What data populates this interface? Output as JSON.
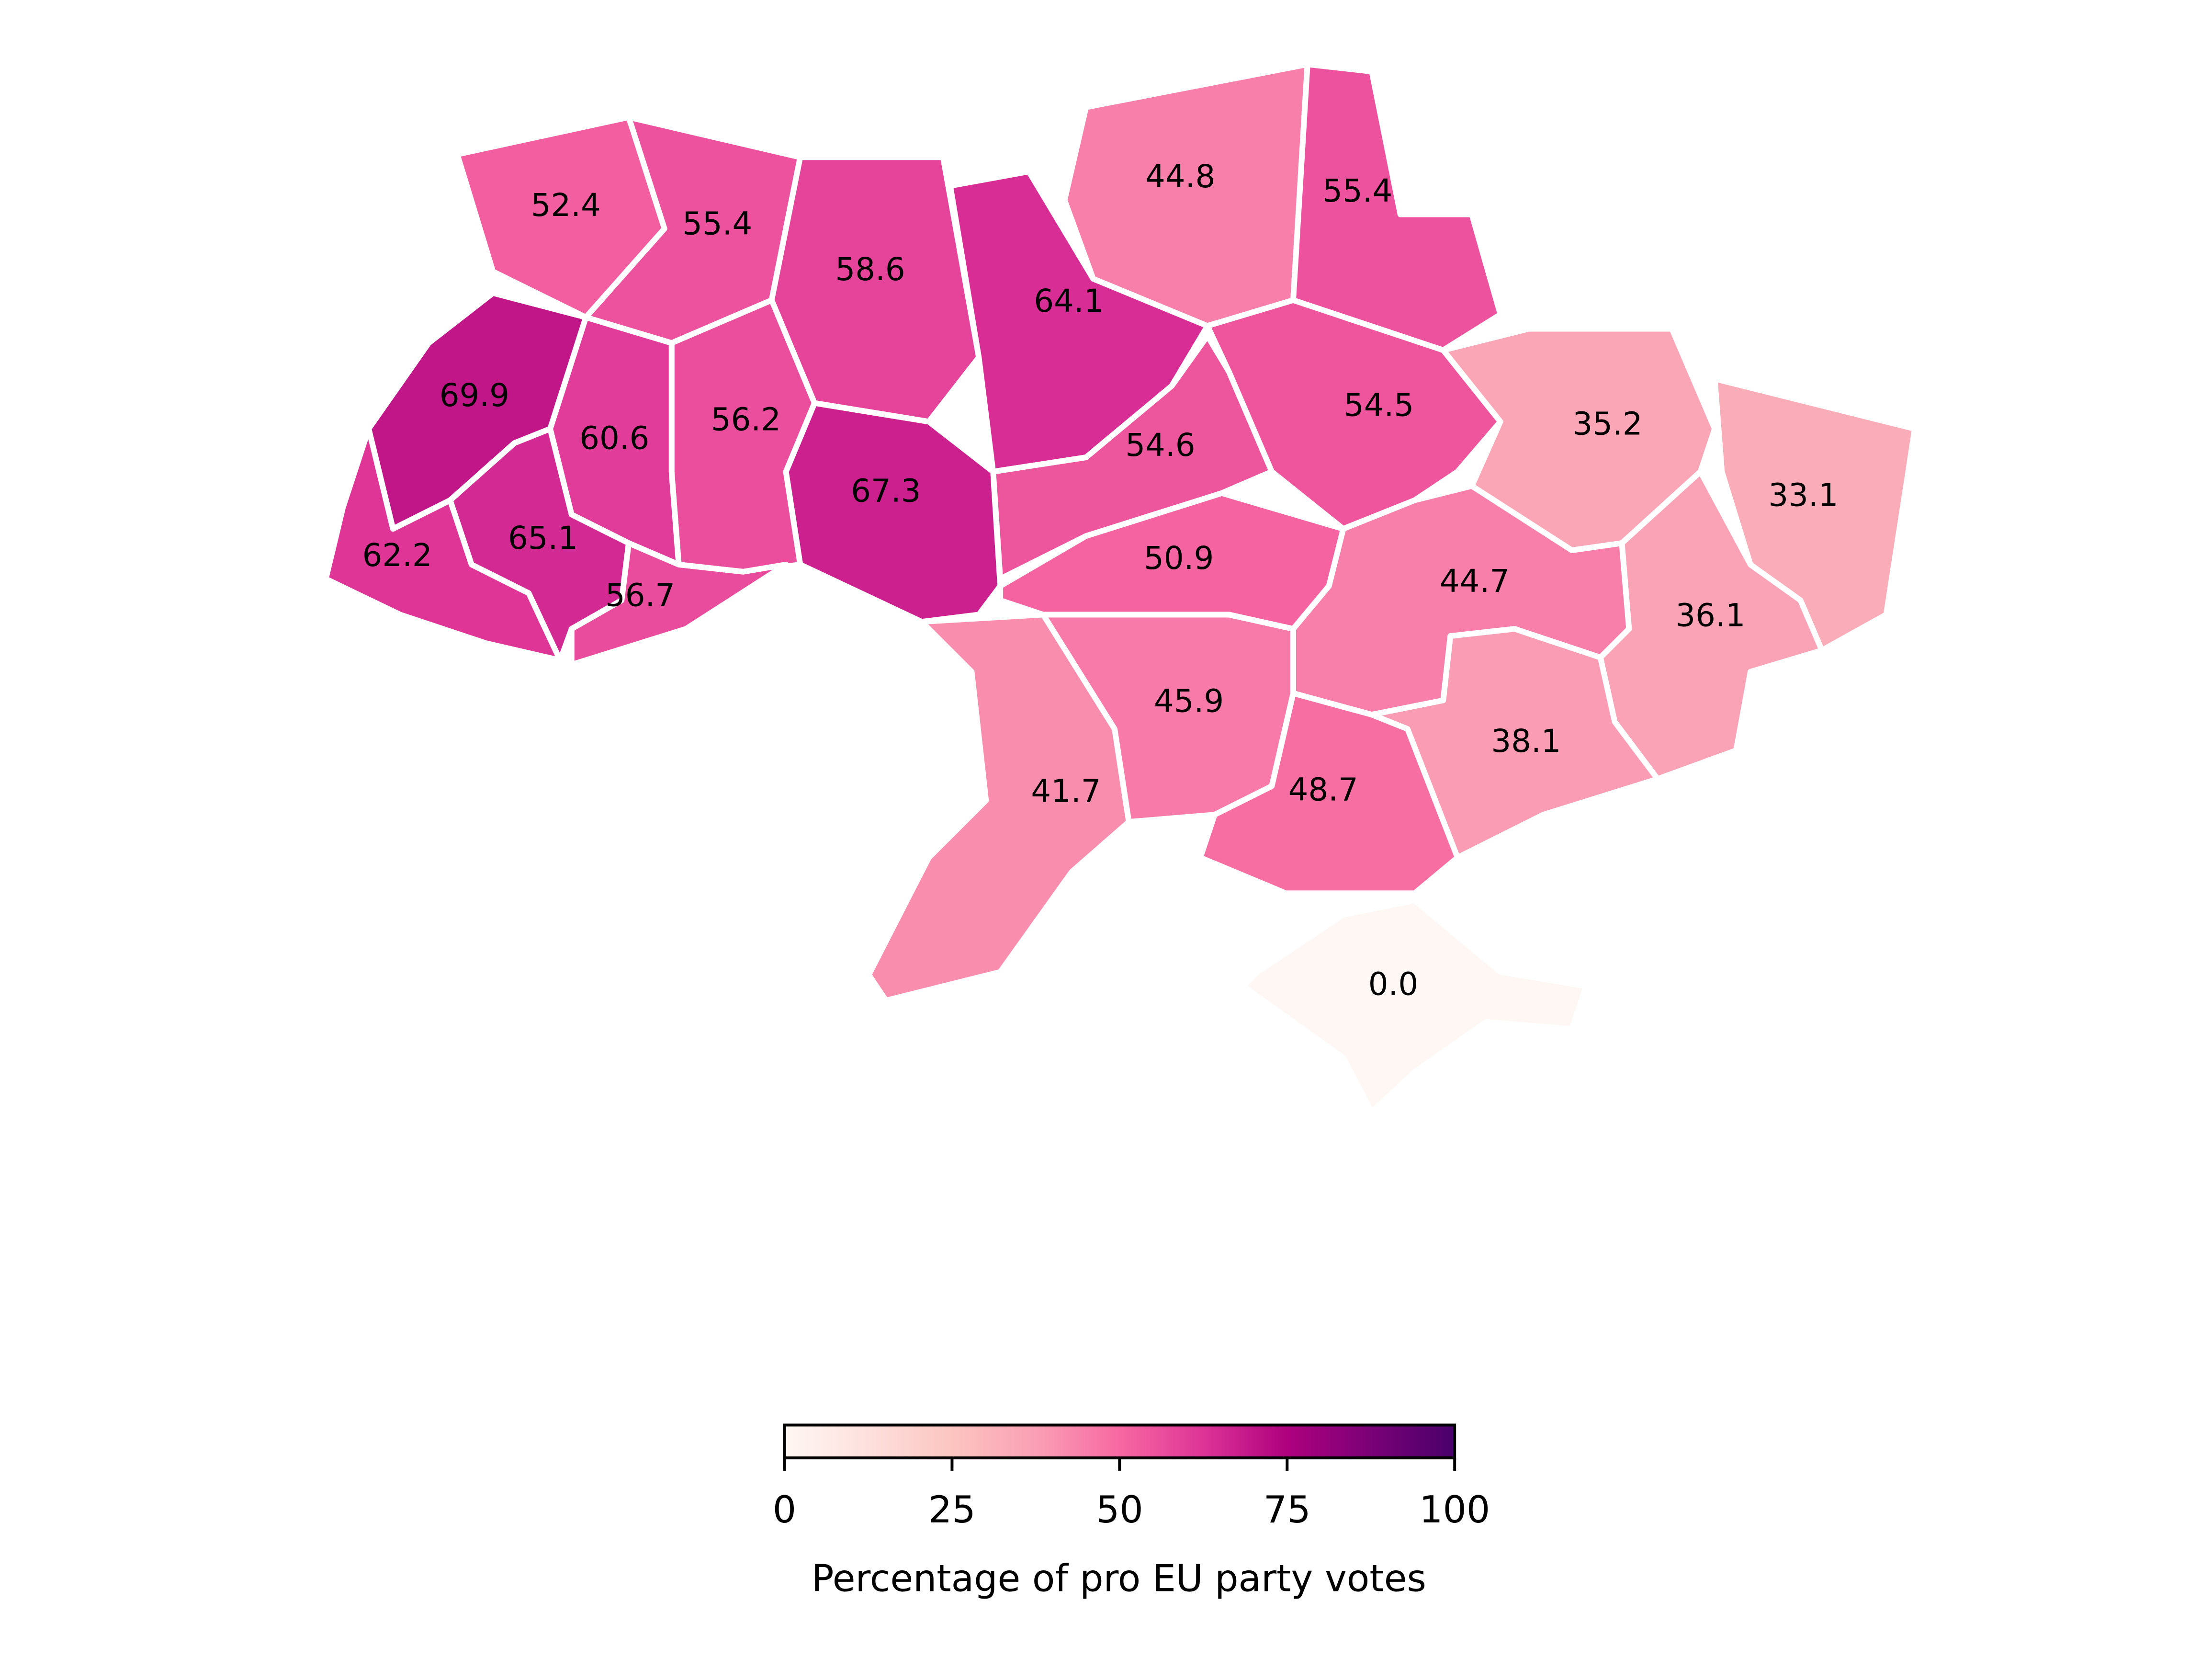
{
  "chart_data": {
    "type": "choropleth",
    "values": [
      52.4,
      55.4,
      58.6,
      64.1,
      44.8,
      55.4,
      54.5,
      35.2,
      33.1,
      36.1,
      44.7,
      38.1,
      48.7,
      45.9,
      41.7,
      50.9,
      54.6,
      67.3,
      56.2,
      60.6,
      69.9,
      65.1,
      62.2,
      56.7,
      0.0
    ],
    "value_labels": [
      "52.4",
      "55.4",
      "58.6",
      "64.1",
      "44.8",
      "55.4",
      "54.5",
      "35.2",
      "33.1",
      "36.1",
      "44.7",
      "38.1",
      "48.7",
      "45.9",
      "41.7",
      "50.9",
      "54.6",
      "67.3",
      "56.2",
      "60.6",
      "69.9",
      "65.1",
      "62.2",
      "56.7",
      "0.0"
    ],
    "colormap": "RdPu",
    "clim": [
      0,
      100
    ],
    "cticks": [
      0,
      25,
      50,
      75,
      100
    ],
    "colorbar_label": "Percentage of pro EU party votes"
  }
}
